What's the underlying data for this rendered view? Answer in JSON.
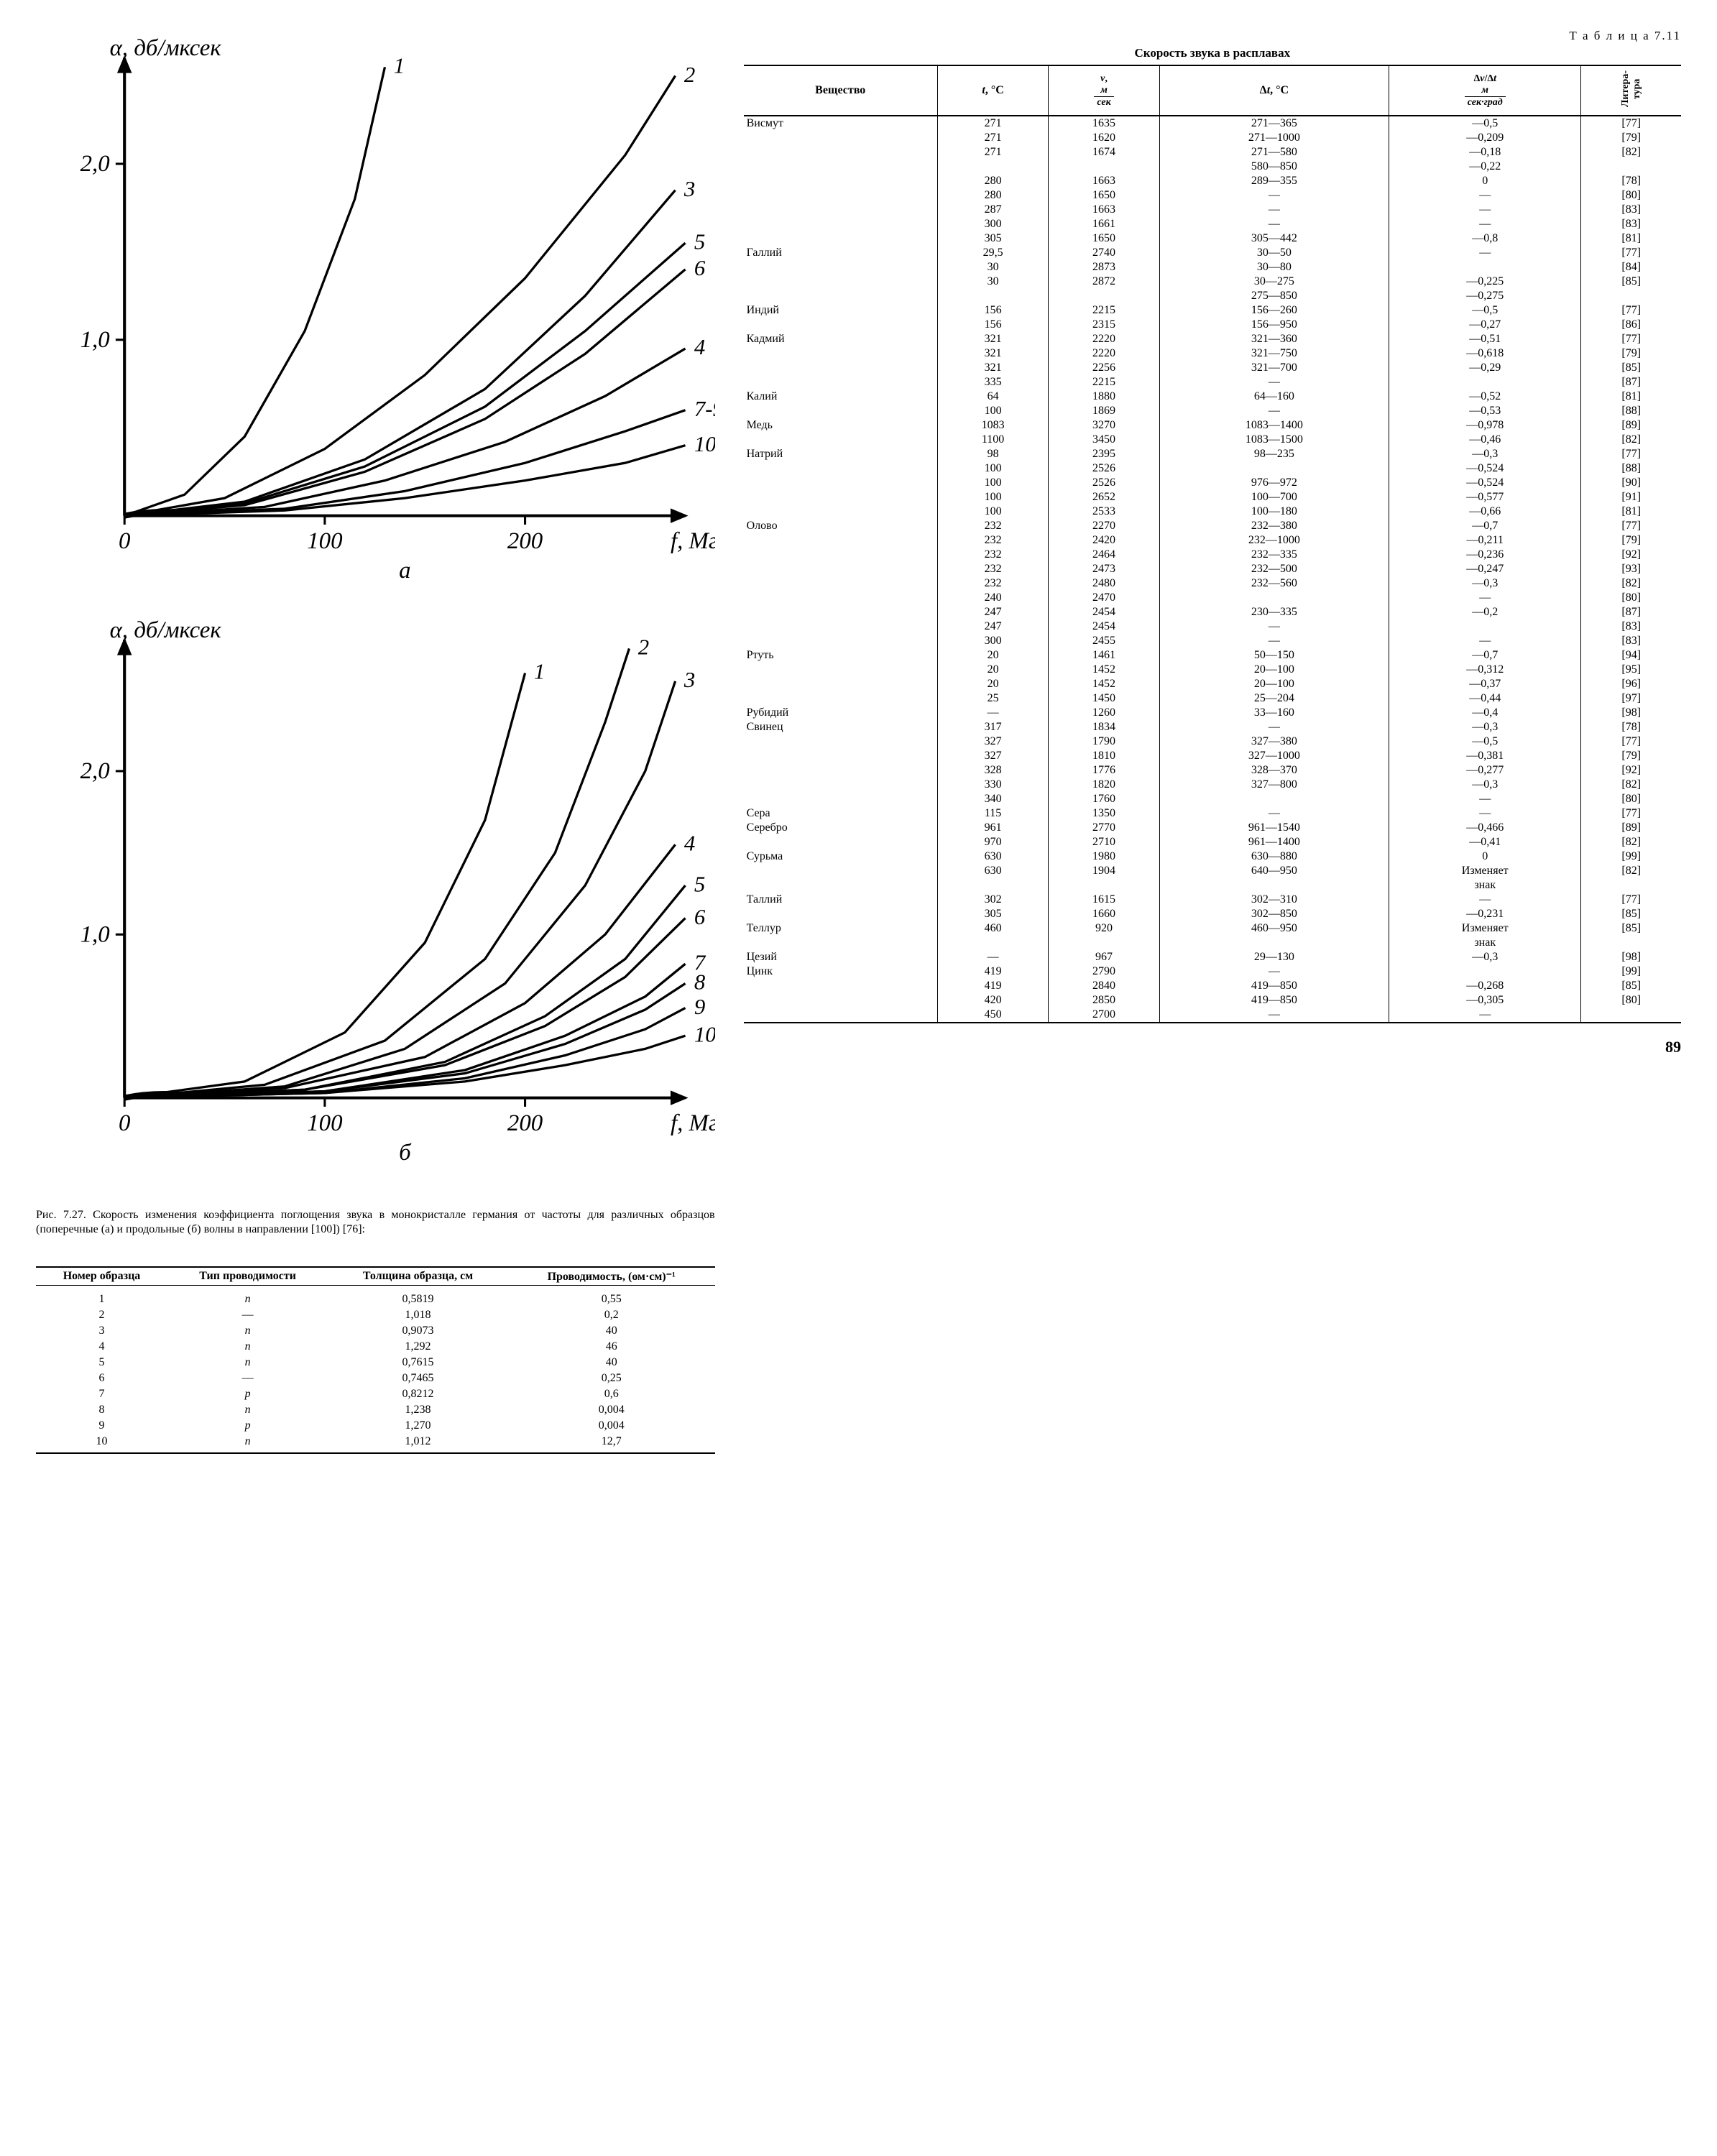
{
  "chart_a": {
    "y_label": "α, дб/мксек",
    "x_label": "f, Мгц",
    "sub_label": "а",
    "xlim": [
      0,
      280
    ],
    "ylim": [
      0,
      2.6
    ],
    "xticks": [
      0,
      100,
      200
    ],
    "yticks": [
      0,
      1.0,
      2.0
    ],
    "stroke": "#000000",
    "bg": "#ffffff",
    "line_width": 1.6,
    "curves": [
      {
        "label": "1",
        "pts": [
          [
            0,
            0
          ],
          [
            30,
            0.12
          ],
          [
            60,
            0.45
          ],
          [
            90,
            1.05
          ],
          [
            115,
            1.8
          ],
          [
            130,
            2.55
          ]
        ]
      },
      {
        "label": "2",
        "pts": [
          [
            0,
            0
          ],
          [
            50,
            0.1
          ],
          [
            100,
            0.38
          ],
          [
            150,
            0.8
          ],
          [
            200,
            1.35
          ],
          [
            250,
            2.05
          ],
          [
            275,
            2.5
          ]
        ]
      },
      {
        "label": "3",
        "pts": [
          [
            0,
            0
          ],
          [
            60,
            0.08
          ],
          [
            120,
            0.32
          ],
          [
            180,
            0.72
          ],
          [
            230,
            1.25
          ],
          [
            275,
            1.85
          ]
        ]
      },
      {
        "label": "5",
        "pts": [
          [
            0,
            0
          ],
          [
            60,
            0.07
          ],
          [
            120,
            0.28
          ],
          [
            180,
            0.62
          ],
          [
            230,
            1.05
          ],
          [
            280,
            1.55
          ]
        ]
      },
      {
        "label": "6",
        "pts": [
          [
            0,
            0
          ],
          [
            60,
            0.06
          ],
          [
            120,
            0.25
          ],
          [
            180,
            0.55
          ],
          [
            230,
            0.92
          ],
          [
            280,
            1.4
          ]
        ]
      },
      {
        "label": "4",
        "pts": [
          [
            0,
            0
          ],
          [
            70,
            0.05
          ],
          [
            130,
            0.2
          ],
          [
            190,
            0.42
          ],
          [
            240,
            0.68
          ],
          [
            280,
            0.95
          ]
        ]
      },
      {
        "label": "7-9",
        "pts": [
          [
            0,
            0
          ],
          [
            80,
            0.04
          ],
          [
            140,
            0.14
          ],
          [
            200,
            0.3
          ],
          [
            250,
            0.48
          ],
          [
            280,
            0.6
          ]
        ]
      },
      {
        "label": "10",
        "pts": [
          [
            0,
            0
          ],
          [
            80,
            0.03
          ],
          [
            140,
            0.1
          ],
          [
            200,
            0.2
          ],
          [
            250,
            0.3
          ],
          [
            280,
            0.4
          ]
        ]
      }
    ]
  },
  "chart_b": {
    "y_label": "α, дб/мксек",
    "x_label": "f, Мгц",
    "sub_label": "б",
    "xlim": [
      0,
      280
    ],
    "ylim": [
      0,
      2.8
    ],
    "xticks": [
      0,
      100,
      200
    ],
    "yticks": [
      0,
      1.0,
      2.0
    ],
    "stroke": "#000000",
    "bg": "#ffffff",
    "line_width": 1.6,
    "curves": [
      {
        "label": "1",
        "pts": [
          [
            0,
            0
          ],
          [
            60,
            0.1
          ],
          [
            110,
            0.4
          ],
          [
            150,
            0.95
          ],
          [
            180,
            1.7
          ],
          [
            200,
            2.6
          ]
        ]
      },
      {
        "label": "2",
        "pts": [
          [
            0,
            0
          ],
          [
            70,
            0.08
          ],
          [
            130,
            0.35
          ],
          [
            180,
            0.85
          ],
          [
            215,
            1.5
          ],
          [
            240,
            2.3
          ],
          [
            252,
            2.75
          ]
        ]
      },
      {
        "label": "3",
        "pts": [
          [
            0,
            0
          ],
          [
            80,
            0.07
          ],
          [
            140,
            0.3
          ],
          [
            190,
            0.7
          ],
          [
            230,
            1.3
          ],
          [
            260,
            2.0
          ],
          [
            275,
            2.55
          ]
        ]
      },
      {
        "label": "4",
        "pts": [
          [
            0,
            0
          ],
          [
            80,
            0.06
          ],
          [
            150,
            0.25
          ],
          [
            200,
            0.58
          ],
          [
            240,
            1.0
          ],
          [
            275,
            1.55
          ]
        ]
      },
      {
        "label": "5",
        "pts": [
          [
            0,
            0
          ],
          [
            90,
            0.05
          ],
          [
            160,
            0.22
          ],
          [
            210,
            0.5
          ],
          [
            250,
            0.85
          ],
          [
            280,
            1.3
          ]
        ]
      },
      {
        "label": "6",
        "pts": [
          [
            0,
            0
          ],
          [
            90,
            0.05
          ],
          [
            160,
            0.2
          ],
          [
            210,
            0.44
          ],
          [
            250,
            0.74
          ],
          [
            280,
            1.1
          ]
        ]
      },
      {
        "label": "7",
        "pts": [
          [
            0,
            0
          ],
          [
            100,
            0.04
          ],
          [
            170,
            0.17
          ],
          [
            220,
            0.38
          ],
          [
            260,
            0.62
          ],
          [
            280,
            0.82
          ]
        ]
      },
      {
        "label": "8",
        "pts": [
          [
            0,
            0
          ],
          [
            100,
            0.04
          ],
          [
            170,
            0.15
          ],
          [
            220,
            0.33
          ],
          [
            260,
            0.54
          ],
          [
            280,
            0.7
          ]
        ]
      },
      {
        "label": "9",
        "pts": [
          [
            0,
            0
          ],
          [
            100,
            0.03
          ],
          [
            170,
            0.12
          ],
          [
            220,
            0.26
          ],
          [
            260,
            0.42
          ],
          [
            280,
            0.55
          ]
        ]
      },
      {
        "label": "10",
        "pts": [
          [
            0,
            0
          ],
          [
            100,
            0.03
          ],
          [
            170,
            0.1
          ],
          [
            220,
            0.2
          ],
          [
            260,
            0.3
          ],
          [
            280,
            0.38
          ]
        ]
      }
    ]
  },
  "figure_caption": "Рис. 7.27. Скорость изменения коэффициента поглощения звука в монокристалле германия от частоты для различных образцов (поперечные (а) и продольные (б) волны в направлении [100]) [76]:",
  "table_small": {
    "columns": [
      "Номер образца",
      "Тип проводимости",
      "Толщина образца, см",
      "Проводимость, (ом·см)⁻¹"
    ],
    "rows": [
      [
        "1",
        "n",
        "0,5819",
        "0,55"
      ],
      [
        "2",
        "—",
        "1,018",
        "0,2"
      ],
      [
        "3",
        "n",
        "0,9073",
        "40"
      ],
      [
        "4",
        "n",
        "1,292",
        "46"
      ],
      [
        "5",
        "n",
        "0,7615",
        "40"
      ],
      [
        "6",
        "—",
        "0,7465",
        "0,25"
      ],
      [
        "7",
        "p",
        "0,8212",
        "0,6"
      ],
      [
        "8",
        "n",
        "1,238",
        "0,004"
      ],
      [
        "9",
        "p",
        "1,270",
        "0,004"
      ],
      [
        "10",
        "n",
        "1,012",
        "12,7"
      ]
    ]
  },
  "table_big": {
    "label": "Т а б л и ц а 7.11",
    "title": "Скорость звука в расплавах",
    "columns": [
      "Вещество",
      "t, °C",
      "v, м/сек",
      "Δt, °C",
      "Δv/Δt, м/сек·град",
      "Литература"
    ],
    "rows": [
      [
        "Висмут",
        "271",
        "1635",
        "271—365",
        "—0,5",
        "[77]"
      ],
      [
        "",
        "271",
        "1620",
        "271—1000",
        "—0,209",
        "[79]"
      ],
      [
        "",
        "271",
        "1674",
        "271—580",
        "—0,18",
        "[82]"
      ],
      [
        "",
        "",
        "",
        "580—850",
        "—0,22",
        ""
      ],
      [
        "",
        "280",
        "1663",
        "289—355",
        "0",
        "[78]"
      ],
      [
        "",
        "280",
        "1650",
        "—",
        "—",
        "[80]"
      ],
      [
        "",
        "287",
        "1663",
        "—",
        "—",
        "[83]"
      ],
      [
        "",
        "300",
        "1661",
        "—",
        "—",
        "[83]"
      ],
      [
        "",
        "305",
        "1650",
        "305—442",
        "—0,8",
        "[81]"
      ],
      [
        "Галлий",
        "29,5",
        "2740",
        "30—50",
        "—",
        "[77]"
      ],
      [
        "",
        "30",
        "2873",
        "30—80",
        "",
        "[84]"
      ],
      [
        "",
        "30",
        "2872",
        "30—275",
        "—0,225",
        "[85]"
      ],
      [
        "",
        "",
        "",
        "275—850",
        "—0,275",
        ""
      ],
      [
        "Индий",
        "156",
        "2215",
        "156—260",
        "—0,5",
        "[77]"
      ],
      [
        "",
        "156",
        "2315",
        "156—950",
        "—0,27",
        "[86]"
      ],
      [
        "Кадмий",
        "321",
        "2220",
        "321—360",
        "—0,51",
        "[77]"
      ],
      [
        "",
        "321",
        "2220",
        "321—750",
        "—0,618",
        "[79]"
      ],
      [
        "",
        "321",
        "2256",
        "321—700",
        "—0,29",
        "[85]"
      ],
      [
        "",
        "335",
        "2215",
        "—",
        "",
        "[87]"
      ],
      [
        "Калий",
        "64",
        "1880",
        "64—160",
        "—0,52",
        "[81]"
      ],
      [
        "",
        "100",
        "1869",
        "—",
        "—0,53",
        "[88]"
      ],
      [
        "Медь",
        "1083",
        "3270",
        "1083—1400",
        "—0,978",
        "[89]"
      ],
      [
        "",
        "1100",
        "3450",
        "1083—1500",
        "—0,46",
        "[82]"
      ],
      [
        "Натрий",
        "98",
        "2395",
        "98—235",
        "—0,3",
        "[77]"
      ],
      [
        "",
        "100",
        "2526",
        "",
        "—0,524",
        "[88]"
      ],
      [
        "",
        "100",
        "2526",
        "976—972",
        "—0,524",
        "[90]"
      ],
      [
        "",
        "100",
        "2652",
        "100—700",
        "—0,577",
        "[91]"
      ],
      [
        "",
        "100",
        "2533",
        "100—180",
        "—0,66",
        "[81]"
      ],
      [
        "Олово",
        "232",
        "2270",
        "232—380",
        "—0,7",
        "[77]"
      ],
      [
        "",
        "232",
        "2420",
        "232—1000",
        "—0,211",
        "[79]"
      ],
      [
        "",
        "232",
        "2464",
        "232—335",
        "—0,236",
        "[92]"
      ],
      [
        "",
        "232",
        "2473",
        "232—500",
        "—0,247",
        "[93]"
      ],
      [
        "",
        "232",
        "2480",
        "232—560",
        "—0,3",
        "[82]"
      ],
      [
        "",
        "240",
        "2470",
        "",
        "—",
        "[80]"
      ],
      [
        "",
        "247",
        "2454",
        "230—335",
        "—0,2",
        "[87]"
      ],
      [
        "",
        "247",
        "2454",
        "—",
        "",
        "[83]"
      ],
      [
        "",
        "300",
        "2455",
        "—",
        "—",
        "[83]"
      ],
      [
        "Ртуть",
        "20",
        "1461",
        "50—150",
        "—0,7",
        "[94]"
      ],
      [
        "",
        "20",
        "1452",
        "20—100",
        "—0,312",
        "[95]"
      ],
      [
        "",
        "20",
        "1452",
        "20—100",
        "—0,37",
        "[96]"
      ],
      [
        "",
        "25",
        "1450",
        "25—204",
        "—0,44",
        "[97]"
      ],
      [
        "Рубидий",
        "—",
        "1260",
        "33—160",
        "—0,4",
        "[98]"
      ],
      [
        "Свинец",
        "317",
        "1834",
        "—",
        "—0,3",
        "[78]"
      ],
      [
        "",
        "327",
        "1790",
        "327—380",
        "—0,5",
        "[77]"
      ],
      [
        "",
        "327",
        "1810",
        "327—1000",
        "—0,381",
        "[79]"
      ],
      [
        "",
        "328",
        "1776",
        "328—370",
        "—0,277",
        "[92]"
      ],
      [
        "",
        "330",
        "1820",
        "327—800",
        "—0,3",
        "[82]"
      ],
      [
        "",
        "340",
        "1760",
        "",
        "—",
        "[80]"
      ],
      [
        "Сера",
        "115",
        "1350",
        "—",
        "—",
        "[77]"
      ],
      [
        "Серебро",
        "961",
        "2770",
        "961—1540",
        "—0,466",
        "[89]"
      ],
      [
        "",
        "970",
        "2710",
        "961—1400",
        "—0,41",
        "[82]"
      ],
      [
        "Сурьма",
        "630",
        "1980",
        "630—880",
        "0",
        "[99]"
      ],
      [
        "",
        "630",
        "1904",
        "640—950",
        "Изменяет",
        "[82]"
      ],
      [
        "",
        "",
        "",
        "",
        "знак",
        ""
      ],
      [
        "Таллий",
        "302",
        "1615",
        "302—310",
        "—",
        "[77]"
      ],
      [
        "",
        "305",
        "1660",
        "302—850",
        "—0,231",
        "[85]"
      ],
      [
        "Теллур",
        "460",
        "920",
        "460—950",
        "Изменяет",
        "[85]"
      ],
      [
        "",
        "",
        "",
        "",
        "знак",
        ""
      ],
      [
        "Цезий",
        "—",
        "967",
        "29—130",
        "—0,3",
        "[98]"
      ],
      [
        "Цинк",
        "419",
        "2790",
        "—",
        "",
        "[99]"
      ],
      [
        "",
        "419",
        "2840",
        "419—850",
        "—0,268",
        "[85]"
      ],
      [
        "",
        "420",
        "2850",
        "419—850",
        "—0,305",
        "[80]"
      ],
      [
        "",
        "450",
        "2700",
        "—",
        "—",
        ""
      ]
    ]
  },
  "page_number": "89"
}
